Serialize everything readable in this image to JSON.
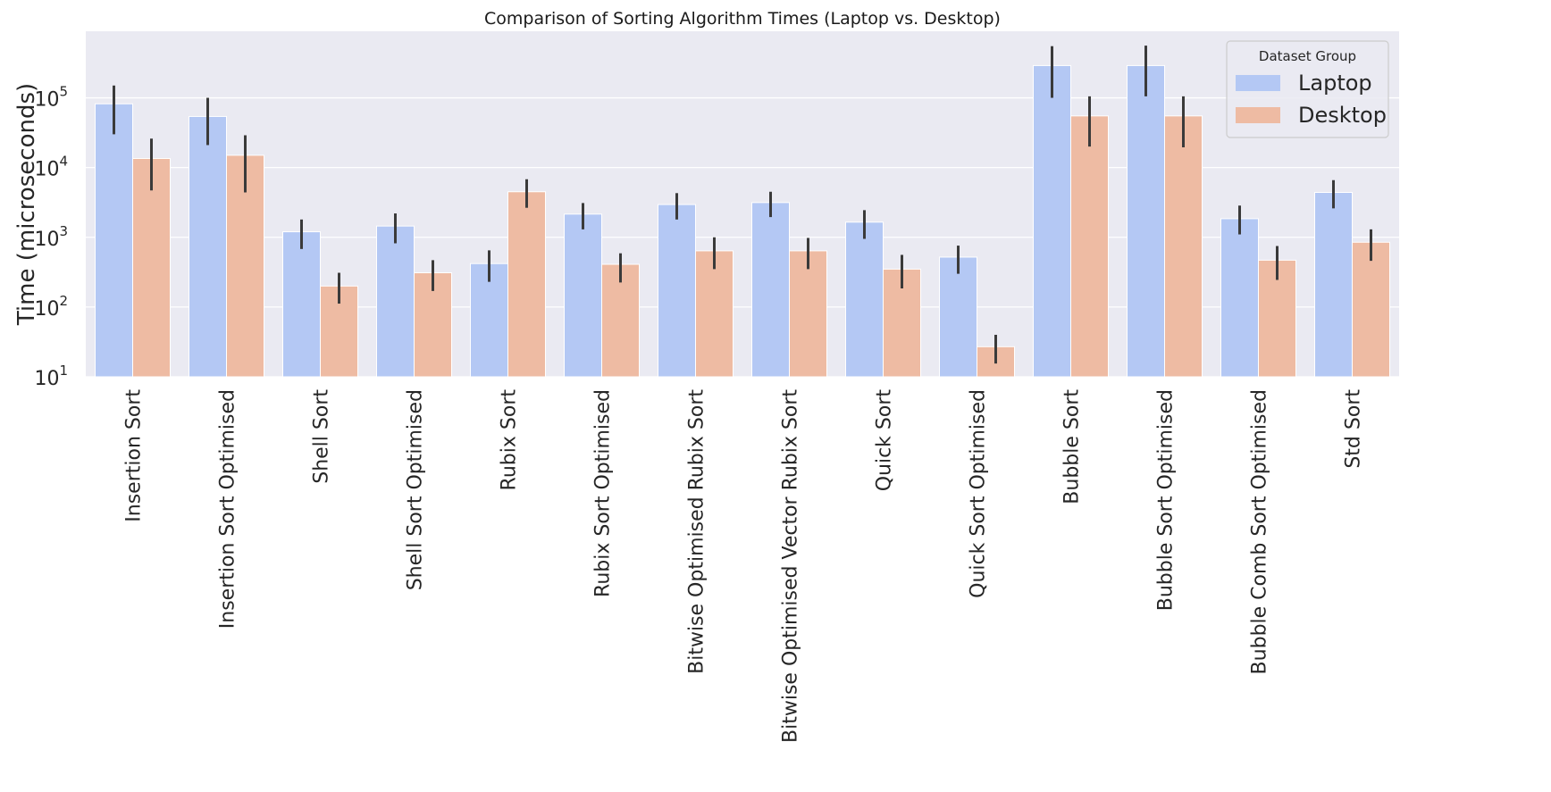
{
  "chart_data": {
    "type": "bar",
    "title": "Comparison of Sorting Algorithm Times (Laptop vs. Desktop)",
    "xlabel": "",
    "ylabel": "Time (microseconds)",
    "yscale": "log",
    "ylim": [
      10,
      900000
    ],
    "ytick_values": [
      10,
      100,
      1000,
      10000,
      100000
    ],
    "ytick_exponents": [
      "1",
      "2",
      "3",
      "4",
      "5"
    ],
    "ytick_base": "10",
    "grid": true,
    "legend": {
      "title": "Dataset Group",
      "placement": "top-right"
    },
    "categories": [
      "Insertion Sort",
      "Insertion Sort Optimised",
      "Shell Sort",
      "Shell Sort Optimised",
      "Rubix Sort",
      "Rubix Sort Optimised",
      "Bitwise Optimised Rubix Sort",
      "Bitwise Optimised Vector Rubix Sort",
      "Quick Sort",
      "Quick Sort Optimised",
      "Bubble Sort",
      "Bubble Sort Optimised",
      "Bubble Comb Sort Optimised",
      "Std Sort"
    ],
    "series": [
      {
        "name": "Laptop",
        "color": "#b4c8f4",
        "values": [
          82000,
          54000,
          1200,
          1450,
          420,
          2150,
          2950,
          3150,
          1650,
          520,
          290000,
          290000,
          1850,
          4400
        ],
        "error_low": [
          30000,
          21000,
          680,
          820,
          230,
          1300,
          1800,
          1950,
          950,
          300,
          100000,
          105000,
          1100,
          2600
        ],
        "error_high": [
          150000,
          100000,
          1800,
          2200,
          650,
          3100,
          4300,
          4500,
          2450,
          760,
          550000,
          560000,
          2850,
          6600
        ]
      },
      {
        "name": "Desktop",
        "color": "#eebba3",
        "values": [
          13500,
          15000,
          200,
          310,
          4500,
          410,
          640,
          640,
          350,
          27,
          55000,
          55000,
          470,
          850
        ],
        "error_low": [
          4700,
          4400,
          112,
          170,
          2650,
          225,
          350,
          350,
          185,
          15.5,
          20000,
          19500,
          245,
          460
        ],
        "error_high": [
          26000,
          29000,
          310,
          470,
          6800,
          590,
          1000,
          980,
          560,
          40,
          105000,
          105000,
          750,
          1300
        ]
      }
    ]
  }
}
